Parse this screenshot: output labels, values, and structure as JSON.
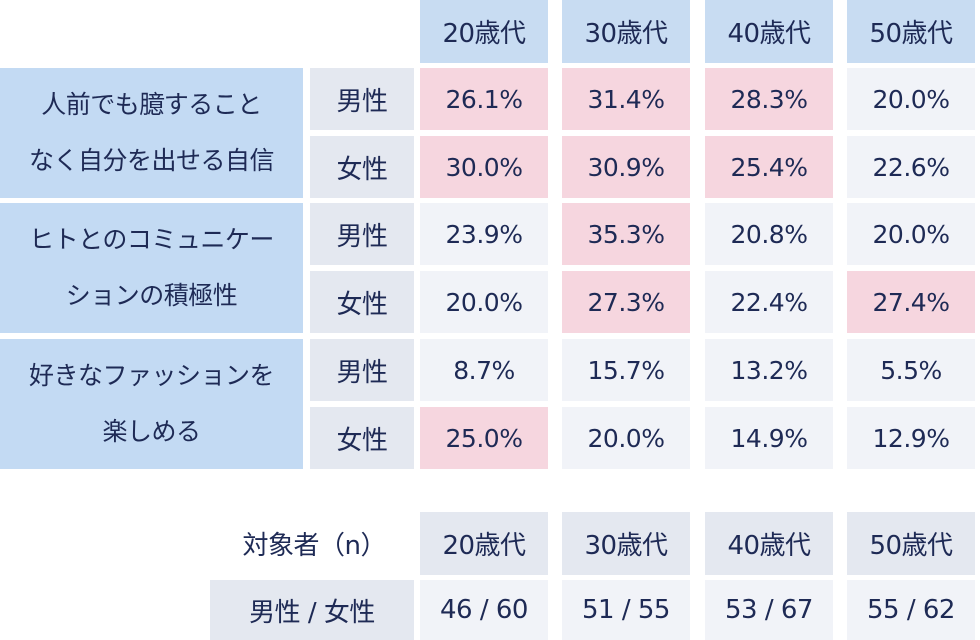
{
  "table": {
    "age_headers": [
      "20歳代",
      "30歳代",
      "40歳代",
      "50歳代"
    ],
    "categories": [
      {
        "line1": "人前でも臆すること",
        "line2": "なく自分を出せる自信",
        "rows": [
          {
            "gender": "男性",
            "values": [
              "26.1%",
              "31.4%",
              "28.3%",
              "20.0%"
            ],
            "highlight": [
              true,
              true,
              true,
              false
            ]
          },
          {
            "gender": "女性",
            "values": [
              "30.0%",
              "30.9%",
              "25.4%",
              "22.6%"
            ],
            "highlight": [
              true,
              true,
              true,
              false
            ]
          }
        ]
      },
      {
        "line1": "ヒトとのコミュニケー",
        "line2": "ションの積極性",
        "rows": [
          {
            "gender": "男性",
            "values": [
              "23.9%",
              "35.3%",
              "20.8%",
              "20.0%"
            ],
            "highlight": [
              false,
              true,
              false,
              false
            ]
          },
          {
            "gender": "女性",
            "values": [
              "20.0%",
              "27.3%",
              "22.4%",
              "27.4%"
            ],
            "highlight": [
              false,
              true,
              false,
              true
            ]
          }
        ]
      },
      {
        "line1": "好きなファッションを",
        "line2": "楽しめる",
        "rows": [
          {
            "gender": "男性",
            "values": [
              "8.7%",
              "15.7%",
              "13.2%",
              "5.5%"
            ],
            "highlight": [
              false,
              false,
              false,
              false
            ]
          },
          {
            "gender": "女性",
            "values": [
              "25.0%",
              "20.0%",
              "14.9%",
              "12.9%"
            ],
            "highlight": [
              true,
              false,
              false,
              false
            ]
          }
        ]
      }
    ]
  },
  "sample": {
    "label": "対象者（n）",
    "age_headers": [
      "20歳代",
      "30歳代",
      "40歳代",
      "50歳代"
    ],
    "row_label": "男性 / 女性",
    "values": [
      "46 / 60",
      "51 / 55",
      "53 / 67",
      "55 / 62"
    ]
  },
  "colors": {
    "header_bg": "#c8dcf2",
    "category_bg": "#c3daf3",
    "gender_bg": "#e4e8f0",
    "value_bg": "#f1f3f8",
    "highlight_bg": "#f6d6df",
    "text": "#1e2a55"
  }
}
